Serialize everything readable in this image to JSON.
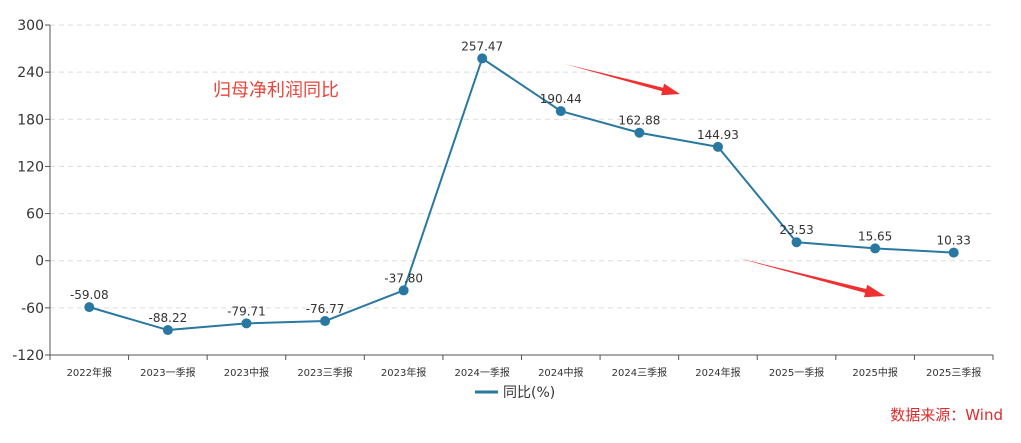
{
  "chart_data": {
    "type": "line",
    "categories": [
      "2022年报",
      "2023一季报",
      "2023中报",
      "2023三季报",
      "2023年报",
      "2024一季报",
      "2024中报",
      "2024三季报",
      "2024年报",
      "2025一季报",
      "2025中报",
      "2025三季报"
    ],
    "series": [
      {
        "name": "同比(%)",
        "values": [
          -59.08,
          -88.22,
          -79.71,
          -76.77,
          -37.8,
          257.47,
          190.44,
          162.88,
          144.93,
          23.53,
          15.65,
          10.33
        ],
        "data_labels": [
          "-59.08",
          "-88.22",
          "-79.71",
          "-76.77",
          "-37.80",
          "257.47",
          "190.44",
          "162.88",
          "144.93",
          "23.53",
          "15.65",
          "10.33"
        ],
        "color": "#2878a2"
      }
    ],
    "ylim": [
      -120,
      300
    ],
    "yticks": [
      300,
      240,
      180,
      120,
      60,
      0,
      -60,
      -120
    ],
    "grid": true,
    "legend": "bottom"
  },
  "annotation": {
    "text": "归母净利润同比",
    "color": "#e8453c"
  },
  "source": {
    "text": "数据来源：Wind",
    "color": "#e02b2b"
  },
  "arrow_color": "#f03030"
}
